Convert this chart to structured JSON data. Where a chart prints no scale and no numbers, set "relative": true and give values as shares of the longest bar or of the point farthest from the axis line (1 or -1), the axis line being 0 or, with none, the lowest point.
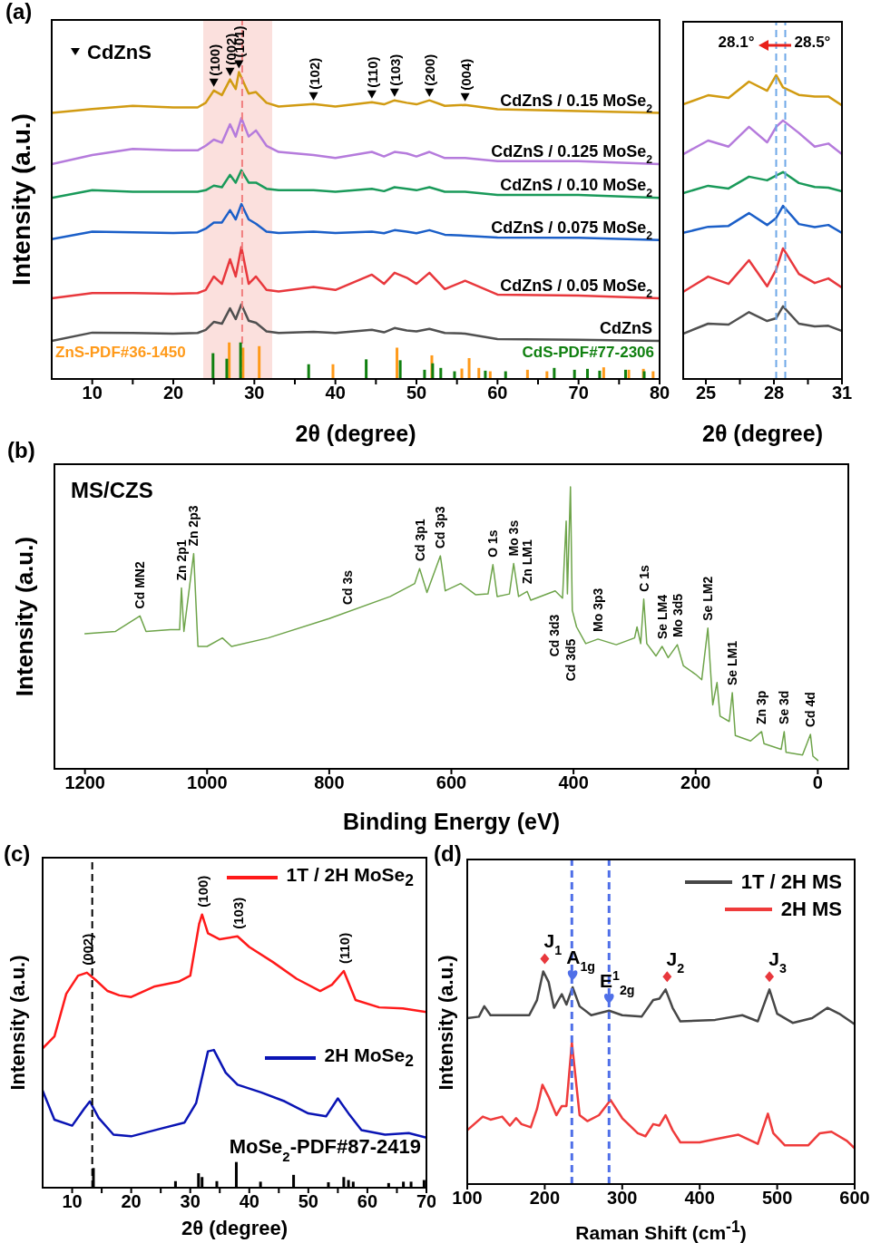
{
  "chart_data": [
    {
      "type": "line",
      "relative": true,
      "tick_labels": "x",
      "xlabel": "2θ (degree)",
      "ylabel": "Intensity (a.u.)",
      "xlim": [
        5,
        80
      ],
      "xticks": [
        10,
        {
          "value": 15,
          "label": null
        },
        20,
        {
          "value": 25,
          "label": null
        },
        30,
        {
          "value": 35,
          "label": null
        },
        40,
        {
          "value": 45,
          "label": null
        },
        50,
        {
          "value": 55,
          "label": null
        },
        60,
        {
          "value": 65,
          "label": null
        },
        70,
        {
          "value": 75,
          "label": null
        },
        80
      ],
      "annotations": [
        "(a)",
        "CdZnS",
        {
          "text": "(100)",
          "x": 25,
          "y": 0.94
        },
        {
          "text": "(002)",
          "x": 27,
          "y": 0.976
        },
        {
          "text": "(101)",
          "x": 28.1,
          "y": 1.0
        },
        {
          "text": "(102)",
          "x": 37.3,
          "y": 0.896
        },
        {
          "text": "(110)",
          "x": 44.5,
          "y": 0.902
        },
        {
          "text": "(103)",
          "x": 47.3,
          "y": 0.908
        },
        {
          "text": "(200)",
          "x": 51.6,
          "y": 0.908
        },
        {
          "text": "(004)",
          "x": 56,
          "y": 0.893
        }
      ],
      "bands": [
        {
          "axis": "x",
          "from": 23.7,
          "to": 32.2,
          "color": "#fbe0dd"
        }
      ],
      "ref_lines": [
        {
          "axis": "x",
          "value": 28.5,
          "color": "#f08080",
          "line_style": "dashed"
        }
      ],
      "series": [
        {
          "name": "CdZnS / 0.15 MoSe$_{2}$",
          "color": "#d19b12",
          "x": [
            5,
            10,
            15,
            20,
            23,
            24,
            25,
            26,
            27,
            27.7,
            28.1,
            29.3,
            30.2,
            31.5,
            33,
            37.3,
            40,
            44.5,
            46,
            47.3,
            48.8,
            50,
            51.6,
            53.5,
            56,
            60,
            70,
            80
          ],
          "values": [
            0.867,
            0.88,
            0.89,
            0.885,
            0.885,
            0.9,
            0.94,
            0.925,
            0.976,
            0.945,
            1.0,
            0.93,
            0.935,
            0.9,
            0.888,
            0.896,
            0.888,
            0.902,
            0.895,
            0.908,
            0.9,
            0.895,
            0.908,
            0.89,
            0.893,
            0.879,
            0.873,
            0.867
          ]
        },
        {
          "name": "CdZnS / 0.125 MoSe$_{2}$",
          "color": "#b57bdc",
          "x": [
            5,
            10,
            15,
            20,
            23,
            24,
            25,
            26,
            27,
            27.7,
            28.4,
            29.3,
            30.2,
            31.5,
            33,
            37.3,
            40,
            44.5,
            46,
            47.3,
            48.8,
            50,
            51.6,
            53.5,
            56,
            60,
            70,
            80
          ],
          "values": [
            0.7,
            0.73,
            0.75,
            0.745,
            0.745,
            0.76,
            0.78,
            0.77,
            0.83,
            0.79,
            0.85,
            0.79,
            0.81,
            0.76,
            0.74,
            0.73,
            0.72,
            0.74,
            0.725,
            0.74,
            0.735,
            0.725,
            0.74,
            0.72,
            0.72,
            0.71,
            0.71,
            0.7
          ]
        },
        {
          "name": "CdZnS / 0.10 MoSe$_{2}$",
          "color": "#1a9a5a",
          "x": [
            5,
            10,
            15,
            20,
            23,
            24,
            25,
            26,
            27,
            27.7,
            28.4,
            29.3,
            30.2,
            31.5,
            33,
            37.3,
            40,
            44.5,
            46,
            47.3,
            48.8,
            50,
            51.6,
            53.5,
            56,
            60,
            70,
            80
          ],
          "values": [
            0.59,
            0.615,
            0.61,
            0.61,
            0.61,
            0.615,
            0.63,
            0.625,
            0.665,
            0.64,
            0.68,
            0.64,
            0.64,
            0.62,
            0.615,
            0.615,
            0.61,
            0.62,
            0.612,
            0.625,
            0.62,
            0.615,
            0.625,
            0.61,
            0.61,
            0.6,
            0.6,
            0.59
          ]
        },
        {
          "name": "CdZnS / 0.075 MoSe$_{2}$",
          "color": "#1b5fc8",
          "x": [
            5,
            10,
            15,
            20,
            23,
            24,
            25,
            26,
            27,
            27.7,
            28.4,
            29.3,
            30.2,
            31.5,
            33,
            37.3,
            40,
            44.5,
            46,
            47.3,
            48.8,
            50,
            51.6,
            53.5,
            56,
            60,
            70,
            80
          ],
          "values": [
            0.456,
            0.48,
            0.478,
            0.476,
            0.478,
            0.49,
            0.51,
            0.51,
            0.55,
            0.52,
            0.57,
            0.52,
            0.506,
            0.48,
            0.476,
            0.48,
            0.476,
            0.48,
            0.475,
            0.485,
            0.48,
            0.475,
            0.485,
            0.47,
            0.467,
            0.461,
            0.46,
            0.453
          ]
        },
        {
          "name": "CdZnS / 0.05 MoSe$_{2}$",
          "color": "#e8383d",
          "x": [
            5,
            10,
            15,
            20,
            23,
            24,
            25,
            26,
            27,
            27.7,
            28.4,
            29.3,
            30.2,
            31.5,
            33,
            37.3,
            40,
            44.5,
            46,
            47.3,
            48.8,
            50,
            51.6,
            53.5,
            56,
            60,
            70,
            80
          ],
          "values": [
            0.263,
            0.28,
            0.28,
            0.278,
            0.28,
            0.29,
            0.334,
            0.31,
            0.39,
            0.334,
            0.43,
            0.31,
            0.334,
            0.29,
            0.285,
            0.3,
            0.29,
            0.34,
            0.31,
            0.346,
            0.33,
            0.31,
            0.346,
            0.293,
            0.32,
            0.275,
            0.272,
            0.263
          ]
        },
        {
          "name": "CdZnS",
          "color": "#505050",
          "x": [
            5,
            10,
            15,
            20,
            23,
            24,
            25,
            26,
            27,
            27.7,
            28.4,
            29.3,
            30.2,
            31.5,
            33,
            37.3,
            40,
            44.5,
            46,
            47.3,
            48.8,
            50,
            51.6,
            53.5,
            56,
            60,
            70,
            80
          ],
          "values": [
            0.124,
            0.151,
            0.15,
            0.148,
            0.15,
            0.16,
            0.186,
            0.18,
            0.23,
            0.195,
            0.243,
            0.19,
            0.183,
            0.155,
            0.15,
            0.154,
            0.15,
            0.16,
            0.152,
            0.166,
            0.158,
            0.155,
            0.163,
            0.15,
            0.148,
            0.13,
            0.128,
            0.124
          ]
        },
        {
          "type": "bar",
          "name": "ZnS-PDF#36-1450",
          "color": "#ff9a1a",
          "x": [
            26.9,
            28.6,
            30.6,
            39.7,
            47.6,
            51.9,
            55.6,
            56.5,
            57.7,
            59.1,
            63.7,
            66.1,
            73.1,
            76.2,
            78.0,
            79.2
          ],
          "values": [
            0.119,
            0.102,
            0.107,
            0.048,
            0.102,
            0.077,
            0.034,
            0.068,
            0.036,
            0.025,
            0.03,
            0.025,
            0.038,
            0.03,
            0.033,
            0.025
          ]
        },
        {
          "type": "bar",
          "name": "CdS-PDF#77-2306",
          "color": "#108010",
          "x": [
            24.9,
            26.6,
            28.3,
            36.7,
            43.8,
            48.0,
            51.0,
            52.0,
            53.0,
            54.7,
            58.5,
            61.0,
            67.0,
            69.5,
            71.1,
            72.6,
            75.8,
            78.1
          ],
          "values": [
            0.084,
            0.066,
            0.119,
            0.048,
            0.064,
            0.061,
            0.03,
            0.051,
            0.036,
            0.025,
            0.027,
            0.025,
            0.036,
            0.03,
            0.033,
            0.027,
            0.03,
            0.025
          ]
        }
      ]
    },
    {
      "type": "line",
      "relative": true,
      "tick_labels": "x",
      "xlabel": "2θ (degree)",
      "xlim": [
        24,
        31
      ],
      "xticks": [
        25,
        {
          "value": 26.5,
          "label": null
        },
        28,
        {
          "value": 29.5,
          "label": null
        },
        31
      ],
      "ref_lines": [
        {
          "axis": "x",
          "value": 28.1,
          "label": "28.1°",
          "color": "#6fa8e8",
          "line_style": "dashed"
        },
        {
          "axis": "x",
          "value": 28.5,
          "label": "28.5°",
          "color": "#6fa8e8",
          "line_style": "dashed"
        }
      ],
      "series": [
        {
          "color": "#d19b12",
          "x": [
            24,
            25.1,
            26,
            26.9,
            27.7,
            28.1,
            28.4,
            29.1,
            29.8,
            30.4,
            31
          ],
          "values": [
            0.904,
            0.934,
            0.925,
            0.979,
            0.949,
            1.0,
            0.96,
            0.935,
            0.93,
            0.93,
            0.901
          ]
        },
        {
          "color": "#b57bdc",
          "x": [
            24,
            25.1,
            26,
            26.9,
            27.7,
            28.1,
            28.4,
            29.1,
            29.8,
            30.4,
            31
          ],
          "values": [
            0.74,
            0.785,
            0.765,
            0.83,
            0.779,
            0.83,
            0.851,
            0.81,
            0.765,
            0.775,
            0.74
          ]
        },
        {
          "color": "#1a9a5a",
          "x": [
            24,
            25.1,
            26,
            26.9,
            27.7,
            28.1,
            28.4,
            29.1,
            29.8,
            30.4,
            31
          ],
          "values": [
            0.612,
            0.636,
            0.627,
            0.666,
            0.654,
            0.67,
            0.681,
            0.645,
            0.632,
            0.63,
            0.618
          ]
        },
        {
          "color": "#1b5fc8",
          "x": [
            24,
            25.1,
            26,
            26.9,
            27.7,
            28.1,
            28.4,
            29.1,
            29.8,
            30.4,
            31
          ],
          "values": [
            0.481,
            0.501,
            0.504,
            0.546,
            0.507,
            0.53,
            0.57,
            0.51,
            0.5,
            0.507,
            0.481
          ]
        },
        {
          "color": "#e8383d",
          "x": [
            24,
            25.1,
            26,
            26.9,
            27.7,
            28.1,
            28.4,
            29.1,
            29.8,
            30.4,
            31
          ],
          "values": [
            0.287,
            0.337,
            0.313,
            0.391,
            0.305,
            0.36,
            0.43,
            0.346,
            0.316,
            0.331,
            0.301
          ]
        },
        {
          "color": "#505050",
          "x": [
            24,
            25.1,
            26,
            26.9,
            27.7,
            28.1,
            28.4,
            29.1,
            29.8,
            30.4,
            31
          ],
          "values": [
            0.149,
            0.182,
            0.179,
            0.22,
            0.191,
            0.2,
            0.239,
            0.182,
            0.173,
            0.175,
            0.158
          ]
        }
      ]
    },
    {
      "type": "line",
      "relative": true,
      "tick_labels": "x",
      "xlabel": "Binding Energy (eV)",
      "ylabel": "Intensity (a.u.)",
      "xlim": [
        1250,
        -50
      ],
      "xticks": [
        1200,
        1000,
        800,
        600,
        400,
        200,
        0
      ],
      "annotations": [
        "(b)",
        "MS/CZS",
        {
          "text": "Cd MN2",
          "x": 1110,
          "y": 0.542
        },
        {
          "text": "Zn 2p1",
          "x": 1042,
          "y": 0.641
        },
        {
          "text": "Zn 2p3",
          "x": 1022,
          "y": 0.763
        },
        {
          "text": "Cd 3s",
          "x": 770,
          "y": 0.556
        },
        {
          "text": "Cd 3p1",
          "x": 652,
          "y": 0.71
        },
        {
          "text": "Cd 3p3",
          "x": 618,
          "y": 0.755
        },
        {
          "text": "O 1s",
          "x": 532,
          "y": 0.724
        },
        {
          "text": "Mo 3s",
          "x": 498,
          "y": 0.728
        },
        {
          "text": "Zn LM1",
          "x": 476,
          "y": 0.629
        },
        "Cd 3d3",
        "Cd 3d5",
        {
          "text": "Mo 3p3",
          "x": 360,
          "y": 0.46
        },
        {
          "text": "C 1s",
          "x": 285,
          "y": 0.602
        },
        {
          "text": "Se LM4",
          "x": 255,
          "y": 0.434
        },
        {
          "text": "Mo 3d5",
          "x": 230,
          "y": 0.44
        },
        {
          "text": "Se LM2",
          "x": 180,
          "y": 0.499
        },
        {
          "text": "Se LM1",
          "x": 140,
          "y": 0.27
        },
        {
          "text": "Zn 3p",
          "x": 92,
          "y": 0.132
        },
        {
          "text": "Se 3d",
          "x": 55,
          "y": 0.132
        },
        {
          "text": "Cd 4d",
          "x": 12,
          "y": 0.122
        }
      ],
      "series": [
        {
          "color": "#6ea44a",
          "x": [
            1200,
            1150,
            1110,
            1100,
            1060,
            1045,
            1042,
            1038,
            1022,
            1015,
            1000,
            975,
            960,
            900,
            800,
            700,
            660,
            652,
            640,
            618,
            610,
            585,
            560,
            540,
            532,
            525,
            505,
            498,
            490,
            476,
            470,
            430,
            418,
            412,
            410,
            405,
            402,
            395,
            380,
            360,
            330,
            300,
            296,
            290,
            285,
            280,
            265,
            255,
            245,
            230,
            220,
            200,
            190,
            180,
            172,
            165,
            160,
            145,
            140,
            135,
            110,
            92,
            88,
            60,
            55,
            52,
            25,
            12,
            8,
            0
          ],
          "values": [
            0.479,
            0.487,
            0.542,
            0.487,
            0.493,
            0.493,
            0.641,
            0.487,
            0.763,
            0.434,
            0.434,
            0.464,
            0.434,
            0.464,
            0.533,
            0.611,
            0.657,
            0.71,
            0.625,
            0.755,
            0.631,
            0.657,
            0.617,
            0.62,
            0.724,
            0.611,
            0.62,
            0.728,
            0.611,
            0.629,
            0.598,
            0.631,
            0.605,
            0.878,
            0.62,
            1.0,
            0.562,
            0.503,
            0.444,
            0.46,
            0.44,
            0.464,
            0.503,
            0.444,
            0.602,
            0.444,
            0.4,
            0.434,
            0.394,
            0.44,
            0.365,
            0.335,
            0.316,
            0.499,
            0.227,
            0.306,
            0.187,
            0.168,
            0.27,
            0.118,
            0.099,
            0.132,
            0.089,
            0.069,
            0.132,
            0.059,
            0.049,
            0.122,
            0.045,
            0.03
          ]
        }
      ]
    },
    {
      "type": "line",
      "relative": true,
      "tick_labels": "x",
      "xlabel": "2θ (degree)",
      "ylabel": "Intensity (a.u.)",
      "legend": "top right",
      "xlim": [
        5,
        70
      ],
      "xticks": [
        10,
        {
          "value": 15,
          "label": null
        },
        20,
        {
          "value": 25,
          "label": null
        },
        30,
        {
          "value": 35,
          "label": null
        },
        40,
        {
          "value": 45,
          "label": null
        },
        50,
        {
          "value": 55,
          "label": null
        },
        60,
        {
          "value": 65,
          "label": null
        },
        70
      ],
      "annotations": [
        "(c)",
        {
          "text": "(002)",
          "x": 12.5,
          "y": 0.787
        },
        {
          "text": "(100)",
          "x": 32,
          "y": 1.0
        },
        {
          "text": "(103)",
          "x": 38,
          "y": 0.92
        },
        {
          "text": "(110)",
          "x": 56,
          "y": 0.793
        }
      ],
      "ref_lines": [
        {
          "axis": "x",
          "value": 13.4,
          "color": "#000000",
          "line_style": "dashed"
        }
      ],
      "series": [
        {
          "name": "1T / 2H MoSe$_{2}$",
          "color": "#ff1a1a",
          "x": [
            5,
            7,
            9,
            11,
            12.5,
            14,
            16,
            18,
            20,
            24,
            28,
            30,
            31.5,
            32,
            33,
            35,
            38,
            40,
            44,
            48,
            52,
            54,
            56,
            58,
            62,
            66,
            70
          ],
          "values": [
            0.51,
            0.554,
            0.71,
            0.776,
            0.787,
            0.76,
            0.72,
            0.704,
            0.698,
            0.737,
            0.754,
            0.776,
            0.965,
            1.0,
            0.931,
            0.909,
            0.92,
            0.881,
            0.826,
            0.765,
            0.72,
            0.743,
            0.793,
            0.687,
            0.66,
            0.656,
            0.643
          ]
        },
        {
          "name": "2H MoSe$_{2}$",
          "color": "#0a14b4",
          "x": [
            5,
            7,
            10,
            12,
            13,
            14.5,
            17,
            20,
            25,
            29,
            31,
            33,
            34,
            36,
            38,
            42,
            46,
            50,
            53,
            55,
            57,
            59,
            63,
            67,
            70
          ],
          "values": [
            0.355,
            0.249,
            0.227,
            0.288,
            0.316,
            0.255,
            0.194,
            0.188,
            0.216,
            0.238,
            0.31,
            0.499,
            0.504,
            0.421,
            0.377,
            0.349,
            0.316,
            0.272,
            0.261,
            0.327,
            0.266,
            0.211,
            0.194,
            0.2,
            0.183
          ]
        },
        {
          "type": "bar",
          "name": "MoSe$_{2}$-PDF#87-2419",
          "color": "#000000",
          "x": [
            13.6,
            27.5,
            31.4,
            32.0,
            34.5,
            37.8,
            41.9,
            47.5,
            53.4,
            56.0,
            56.8,
            57.6,
            63.6,
            66.1,
            67.4,
            69.6
          ],
          "values": [
            0.072,
            0.024,
            0.053,
            0.039,
            0.024,
            0.094,
            0.022,
            0.047,
            0.02,
            0.039,
            0.028,
            0.022,
            0.017,
            0.022,
            0.022,
            0.028
          ]
        }
      ]
    },
    {
      "type": "line",
      "relative": true,
      "tick_labels": "x",
      "xlabel": "Raman Shift (cm$^{-1}$)",
      "ylabel": "Intensity (a.u.)",
      "legend": "top right",
      "xlim": [
        100,
        600
      ],
      "xticks": [
        100,
        200,
        300,
        400,
        500,
        600
      ],
      "annotations": [
        "(d)",
        {
          "text": "J$_{1}$",
          "x": 200,
          "y": 1.0
        },
        {
          "text": "A$_{1g}$",
          "x": 236,
          "y": 0.925
        },
        {
          "text": "E$^{1}$$_{2g}$",
          "x": 283,
          "y": 0.815
        },
        {
          "text": "J$_{2}$",
          "x": 358,
          "y": 0.915
        },
        {
          "text": "J$_{3}$",
          "x": 490,
          "y": 0.915
        }
      ],
      "ref_lines": [
        {
          "axis": "x",
          "value": 235,
          "color": "#4f6fe8",
          "line_style": "dashed"
        },
        {
          "axis": "x",
          "value": 283,
          "color": "#4f6fe8",
          "line_style": "dashed"
        }
      ],
      "series": [
        {
          "name": "1T / 2H MS",
          "color": "#474747",
          "x": [
            100,
            115,
            122,
            130,
            160,
            180,
            190,
            198,
            205,
            212,
            222,
            228,
            236,
            245,
            260,
            283,
            300,
            325,
            340,
            348,
            356,
            365,
            375,
            420,
            455,
            475,
            490,
            500,
            520,
            545,
            565,
            580,
            600
          ],
          "values": [
            0.78,
            0.787,
            0.836,
            0.794,
            0.794,
            0.794,
            0.865,
            1.0,
            0.95,
            0.829,
            0.893,
            0.844,
            0.925,
            0.836,
            0.794,
            0.815,
            0.794,
            0.787,
            0.865,
            0.872,
            0.915,
            0.829,
            0.765,
            0.772,
            0.794,
            0.765,
            0.915,
            0.801,
            0.758,
            0.78,
            0.829,
            0.801,
            0.751
          ]
        },
        {
          "name": "2H MS",
          "color": "#ef3b3b",
          "x": [
            100,
            120,
            130,
            145,
            155,
            163,
            170,
            182,
            190,
            197,
            205,
            215,
            222,
            228,
            235,
            240,
            245,
            255,
            270,
            285,
            300,
            320,
            330,
            340,
            348,
            356,
            365,
            375,
            400,
            420,
            450,
            475,
            488,
            495,
            510,
            540,
            555,
            570,
            590,
            600
          ],
          "values": [
            0.253,
            0.317,
            0.303,
            0.317,
            0.275,
            0.31,
            0.282,
            0.267,
            0.353,
            0.467,
            0.41,
            0.324,
            0.367,
            0.367,
            0.666,
            0.495,
            0.324,
            0.296,
            0.324,
            0.395,
            0.31,
            0.239,
            0.225,
            0.282,
            0.275,
            0.324,
            0.253,
            0.196,
            0.196,
            0.211,
            0.232,
            0.189,
            0.331,
            0.239,
            0.182,
            0.182,
            0.239,
            0.246,
            0.203,
            0.168
          ]
        }
      ]
    }
  ]
}
